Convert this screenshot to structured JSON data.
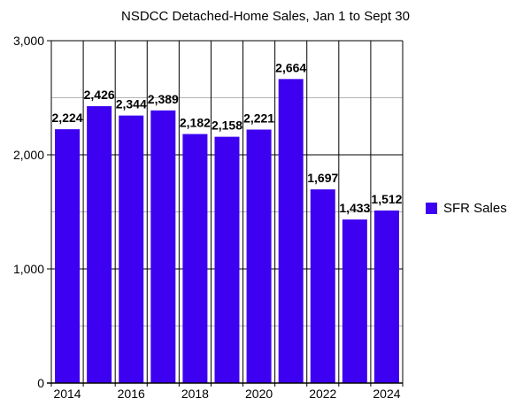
{
  "chart_data": {
    "type": "bar",
    "title": "NSDCC Detached-Home Sales, Jan 1 to Sept 30",
    "categories": [
      "2014",
      "2015",
      "2016",
      "2017",
      "2018",
      "2019",
      "2020",
      "2021",
      "2022",
      "2023",
      "2024"
    ],
    "x_tick_labels": [
      "2014",
      "2016",
      "2018",
      "2020",
      "2022",
      "2024"
    ],
    "series": [
      {
        "name": "SFR Sales",
        "values": [
          2224,
          2426,
          2344,
          2389,
          2182,
          2158,
          2221,
          2664,
          1697,
          1433,
          1512
        ]
      }
    ],
    "data_labels": [
      "2,224",
      "2,426",
      "2,344",
      "2,389",
      "2,182",
      "2,158",
      "2,221",
      "2,664",
      "1,697",
      "1,433",
      "1,512"
    ],
    "y_tick_labels": [
      "0",
      "1,000",
      "2,000",
      "3,000"
    ],
    "ylim": [
      0,
      3000
    ],
    "xlabel": "",
    "ylabel": "",
    "legend_position": "right",
    "grid": true,
    "colors": {
      "bar": "#3d00f0",
      "grid_major": "#000000",
      "grid_minor": "#b3b3b3"
    }
  }
}
